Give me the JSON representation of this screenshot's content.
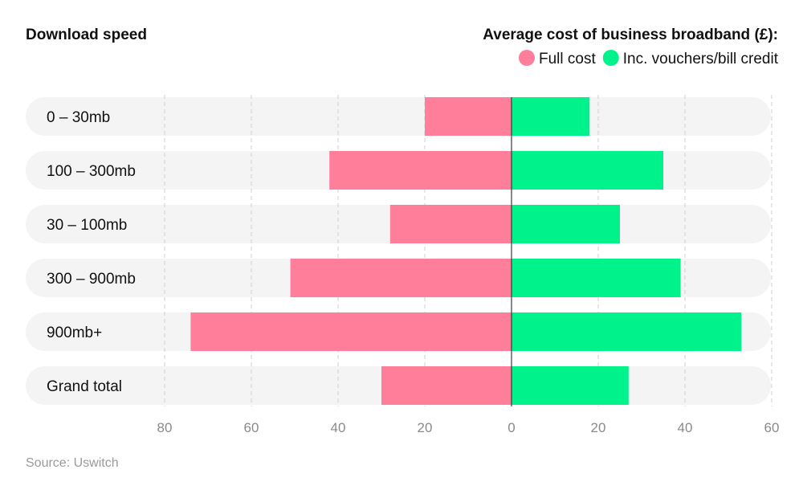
{
  "chart_data": {
    "type": "bar",
    "orientation": "horizontal-diverging",
    "row_header": "Download speed",
    "legend_title": "Average cost of business broadband (£):",
    "legend_position": "top-right",
    "categories": [
      "0 – 30mb",
      "100 – 300mb",
      "30 – 100mb",
      "300 – 900mb",
      "900mb+",
      "Grand total"
    ],
    "series": [
      {
        "name": "Full cost",
        "color": "#ff7f9b",
        "side": "left",
        "values": [
          20,
          42,
          28,
          51,
          74,
          30
        ]
      },
      {
        "name": "Inc. vouchers/bill credit",
        "color": "#00f28a",
        "side": "right",
        "values": [
          18,
          35,
          25,
          39,
          53,
          27
        ]
      }
    ],
    "left_ticks": [
      80,
      60,
      40,
      20,
      0
    ],
    "right_ticks": [
      20,
      40,
      60
    ],
    "left_range": [
      0,
      80
    ],
    "right_range": [
      0,
      60
    ],
    "grid": true,
    "source": "Source: Uswitch"
  }
}
